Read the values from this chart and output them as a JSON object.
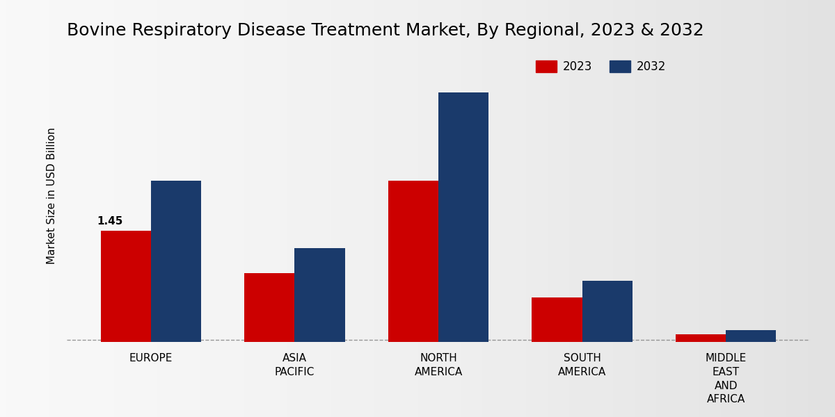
{
  "title": "Bovine Respiratory Disease Treatment Market, By Regional, 2023 & 2032",
  "ylabel": "Market Size in USD Billion",
  "categories": [
    "EUROPE",
    "ASIA\nPACIFIC",
    "NORTH\nAMERICA",
    "SOUTH\nAMERICA",
    "MIDDLE\nEAST\nAND\nAFRICA"
  ],
  "values_2023": [
    1.45,
    0.9,
    2.1,
    0.58,
    0.1
  ],
  "values_2032": [
    2.1,
    1.22,
    3.25,
    0.8,
    0.15
  ],
  "color_2023": "#cc0000",
  "color_2032": "#1a3a6b",
  "annotation_text": "1.45",
  "annotation_index": 0,
  "ylim": [
    0,
    3.8
  ],
  "bar_width": 0.35,
  "legend_labels": [
    "2023",
    "2032"
  ],
  "title_fontsize": 18,
  "label_fontsize": 11,
  "tick_fontsize": 11,
  "bg_color_light": "#e8e8e8",
  "bg_color_dark": "#c8c8c8"
}
